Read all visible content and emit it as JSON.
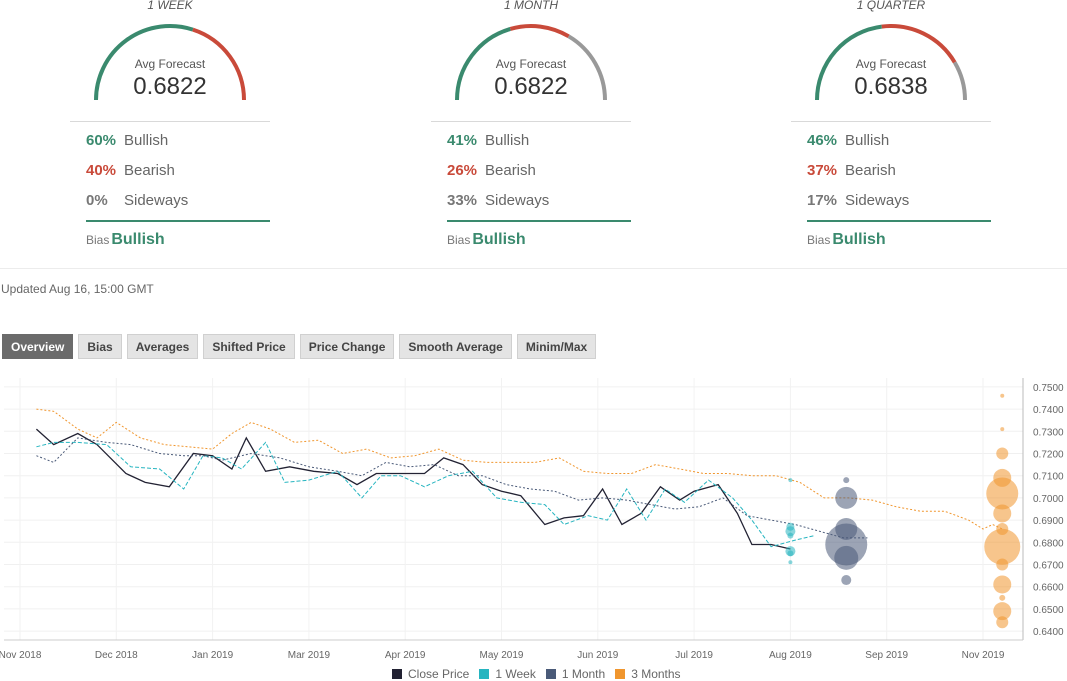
{
  "gauges": [
    {
      "period": "1 WEEK",
      "caption": "Avg Forecast",
      "value": "0.6822",
      "bullish_pct": "60%",
      "bearish_pct": "40%",
      "sideways_pct": "0%",
      "bullish_label": "Bullish",
      "bearish_label": "Bearish",
      "sideways_label": "Sideways",
      "bias_label": "Bias",
      "bias_value": "Bullish",
      "split": {
        "bull": 0.6,
        "bear": 0.4,
        "side": 0.0
      }
    },
    {
      "period": "1 MONTH",
      "caption": "Avg Forecast",
      "value": "0.6822",
      "bullish_pct": "41%",
      "bearish_pct": "26%",
      "sideways_pct": "33%",
      "bullish_label": "Bullish",
      "bearish_label": "Bearish",
      "sideways_label": "Sideways",
      "bias_label": "Bias",
      "bias_value": "Bullish",
      "split": {
        "bull": 0.41,
        "bear": 0.26,
        "side": 0.33
      }
    },
    {
      "period": "1 QUARTER",
      "caption": "Avg Forecast",
      "value": "0.6838",
      "bullish_pct": "46%",
      "bearish_pct": "37%",
      "sideways_pct": "17%",
      "bullish_label": "Bullish",
      "bearish_label": "Bearish",
      "sideways_label": "Sideways",
      "bias_label": "Bias",
      "bias_value": "Bullish",
      "split": {
        "bull": 0.46,
        "bear": 0.37,
        "side": 0.17
      }
    }
  ],
  "updated": "Updated Aug 16, 15:00 GMT",
  "tabs": [
    "Overview",
    "Bias",
    "Averages",
    "Shifted Price",
    "Price Change",
    "Smooth Average",
    "Minim/Max"
  ],
  "active_tab": 0,
  "colors": {
    "bull": "#3a8a6e",
    "bear": "#c94a3a",
    "side": "#999999",
    "close": "#222233",
    "week": "#26b5c0",
    "month": "#4a5a78",
    "quarter": "#f0962e"
  },
  "legend": [
    "Close Price",
    "1 Week",
    "1 Month",
    "3 Months"
  ],
  "chart_data": {
    "type": "line",
    "x_ticks": [
      "Nov 2018",
      "Dec 2018",
      "Jan 2019",
      "Mar 2019",
      "Apr 2019",
      "May 2019",
      "Jun 2019",
      "Jul 2019",
      "Aug 2019",
      "Sep 2019",
      "Nov 2019"
    ],
    "y_ticks": [
      "0.6400",
      "0.6500",
      "0.6600",
      "0.6700",
      "0.6800",
      "0.6900",
      "0.7000",
      "0.7100",
      "0.7200",
      "0.7300",
      "0.7400",
      "0.7500"
    ],
    "ylim": [
      0.636,
      0.754
    ],
    "x_range": [
      0,
      10
    ],
    "series": [
      {
        "name": "Close Price",
        "style": "solid",
        "points": [
          [
            0.17,
            0.731
          ],
          [
            0.35,
            0.724
          ],
          [
            0.6,
            0.729
          ],
          [
            0.8,
            0.724
          ],
          [
            1.1,
            0.711
          ],
          [
            1.3,
            0.707
          ],
          [
            1.55,
            0.705
          ],
          [
            1.8,
            0.72
          ],
          [
            2.0,
            0.719
          ],
          [
            2.2,
            0.713
          ],
          [
            2.35,
            0.727
          ],
          [
            2.55,
            0.712
          ],
          [
            2.8,
            0.714
          ],
          [
            3.05,
            0.712
          ],
          [
            3.3,
            0.711
          ],
          [
            3.5,
            0.706
          ],
          [
            3.7,
            0.711
          ],
          [
            3.9,
            0.711
          ],
          [
            4.2,
            0.711
          ],
          [
            4.4,
            0.718
          ],
          [
            4.6,
            0.715
          ],
          [
            4.8,
            0.706
          ],
          [
            5.0,
            0.703
          ],
          [
            5.2,
            0.701
          ],
          [
            5.45,
            0.688
          ],
          [
            5.65,
            0.691
          ],
          [
            5.85,
            0.692
          ],
          [
            6.05,
            0.704
          ],
          [
            6.25,
            0.688
          ],
          [
            6.45,
            0.693
          ],
          [
            6.65,
            0.705
          ],
          [
            6.85,
            0.699
          ],
          [
            7.0,
            0.703
          ],
          [
            7.25,
            0.706
          ],
          [
            7.45,
            0.693
          ],
          [
            7.6,
            0.679
          ],
          [
            7.8,
            0.679
          ],
          [
            8.0,
            0.677
          ]
        ]
      },
      {
        "name": "1 Week",
        "style": "dashed",
        "points": [
          [
            0.17,
            0.723
          ],
          [
            0.35,
            0.725
          ],
          [
            0.6,
            0.725
          ],
          [
            0.9,
            0.724
          ],
          [
            1.15,
            0.714
          ],
          [
            1.45,
            0.713
          ],
          [
            1.7,
            0.704
          ],
          [
            1.9,
            0.719
          ],
          [
            2.1,
            0.718
          ],
          [
            2.3,
            0.713
          ],
          [
            2.55,
            0.725
          ],
          [
            2.75,
            0.707
          ],
          [
            3.0,
            0.708
          ],
          [
            3.3,
            0.712
          ],
          [
            3.55,
            0.7
          ],
          [
            3.75,
            0.71
          ],
          [
            3.95,
            0.71
          ],
          [
            4.2,
            0.705
          ],
          [
            4.45,
            0.71
          ],
          [
            4.7,
            0.712
          ],
          [
            4.95,
            0.7
          ],
          [
            5.2,
            0.698
          ],
          [
            5.45,
            0.697
          ],
          [
            5.65,
            0.688
          ],
          [
            5.9,
            0.692
          ],
          [
            6.1,
            0.69
          ],
          [
            6.3,
            0.704
          ],
          [
            6.5,
            0.69
          ],
          [
            6.7,
            0.704
          ],
          [
            6.9,
            0.698
          ],
          [
            7.15,
            0.708
          ],
          [
            7.4,
            0.7
          ],
          [
            7.6,
            0.69
          ],
          [
            7.8,
            0.678
          ],
          [
            8.05,
            0.681
          ],
          [
            8.25,
            0.683
          ]
        ]
      },
      {
        "name": "1 Month",
        "style": "dotted",
        "points": [
          [
            0.17,
            0.719
          ],
          [
            0.35,
            0.716
          ],
          [
            0.6,
            0.727
          ],
          [
            0.9,
            0.725
          ],
          [
            1.15,
            0.724
          ],
          [
            1.45,
            0.72
          ],
          [
            1.7,
            0.719
          ],
          [
            1.9,
            0.719
          ],
          [
            2.1,
            0.717
          ],
          [
            2.4,
            0.72
          ],
          [
            2.7,
            0.718
          ],
          [
            3.0,
            0.714
          ],
          [
            3.3,
            0.712
          ],
          [
            3.55,
            0.71
          ],
          [
            3.8,
            0.716
          ],
          [
            4.05,
            0.714
          ],
          [
            4.3,
            0.715
          ],
          [
            4.55,
            0.71
          ],
          [
            4.8,
            0.71
          ],
          [
            5.05,
            0.706
          ],
          [
            5.3,
            0.704
          ],
          [
            5.55,
            0.703
          ],
          [
            5.8,
            0.699
          ],
          [
            6.05,
            0.7
          ],
          [
            6.3,
            0.699
          ],
          [
            6.55,
            0.697
          ],
          [
            6.8,
            0.695
          ],
          [
            7.05,
            0.696
          ],
          [
            7.3,
            0.7
          ],
          [
            7.55,
            0.692
          ],
          [
            7.8,
            0.69
          ],
          [
            8.05,
            0.688
          ],
          [
            8.3,
            0.685
          ],
          [
            8.55,
            0.682
          ],
          [
            8.8,
            0.682
          ]
        ]
      },
      {
        "name": "3 Months",
        "style": "dotted",
        "points": [
          [
            0.17,
            0.74
          ],
          [
            0.35,
            0.739
          ],
          [
            0.6,
            0.731
          ],
          [
            0.8,
            0.727
          ],
          [
            1.0,
            0.734
          ],
          [
            1.25,
            0.727
          ],
          [
            1.5,
            0.724
          ],
          [
            1.75,
            0.723
          ],
          [
            2.0,
            0.722
          ],
          [
            2.2,
            0.729
          ],
          [
            2.4,
            0.734
          ],
          [
            2.6,
            0.731
          ],
          [
            2.85,
            0.725
          ],
          [
            3.1,
            0.726
          ],
          [
            3.35,
            0.72
          ],
          [
            3.6,
            0.722
          ],
          [
            3.85,
            0.718
          ],
          [
            4.1,
            0.719
          ],
          [
            4.35,
            0.722
          ],
          [
            4.6,
            0.717
          ],
          [
            4.85,
            0.716
          ],
          [
            5.1,
            0.716
          ],
          [
            5.35,
            0.716
          ],
          [
            5.6,
            0.718
          ],
          [
            5.85,
            0.712
          ],
          [
            6.1,
            0.711
          ],
          [
            6.35,
            0.711
          ],
          [
            6.6,
            0.715
          ],
          [
            6.85,
            0.713
          ],
          [
            7.1,
            0.711
          ],
          [
            7.35,
            0.711
          ],
          [
            7.6,
            0.71
          ],
          [
            7.85,
            0.71
          ],
          [
            8.1,
            0.707
          ],
          [
            8.35,
            0.7
          ],
          [
            8.6,
            0.7
          ],
          [
            8.85,
            0.699
          ],
          [
            9.1,
            0.696
          ],
          [
            9.35,
            0.694
          ],
          [
            9.6,
            0.694
          ],
          [
            9.85,
            0.69
          ],
          [
            10.0,
            0.686
          ],
          [
            10.1,
            0.688
          ],
          [
            10.2,
            0.686
          ]
        ]
      }
    ],
    "bubbles": [
      {
        "series": "1 Week",
        "x": 8.0,
        "points": [
          [
            0.708,
            2
          ],
          [
            0.687,
            4
          ],
          [
            0.685,
            5
          ],
          [
            0.683,
            3
          ],
          [
            0.676,
            5
          ],
          [
            0.675,
            3
          ],
          [
            0.671,
            2
          ]
        ]
      },
      {
        "series": "1 Month",
        "x": 8.58,
        "points": [
          [
            0.708,
            3
          ],
          [
            0.7,
            11
          ],
          [
            0.686,
            11
          ],
          [
            0.679,
            21
          ],
          [
            0.673,
            12
          ],
          [
            0.663,
            5
          ]
        ]
      },
      {
        "series": "3 Months",
        "x": 10.2,
        "points": [
          [
            0.746,
            2
          ],
          [
            0.731,
            2
          ],
          [
            0.72,
            6
          ],
          [
            0.709,
            9
          ],
          [
            0.702,
            16
          ],
          [
            0.693,
            9
          ],
          [
            0.686,
            6
          ],
          [
            0.678,
            18
          ],
          [
            0.67,
            6
          ],
          [
            0.661,
            9
          ],
          [
            0.655,
            3
          ],
          [
            0.649,
            9
          ],
          [
            0.644,
            6
          ]
        ]
      }
    ],
    "grid": true,
    "legend_position": "bottom"
  }
}
